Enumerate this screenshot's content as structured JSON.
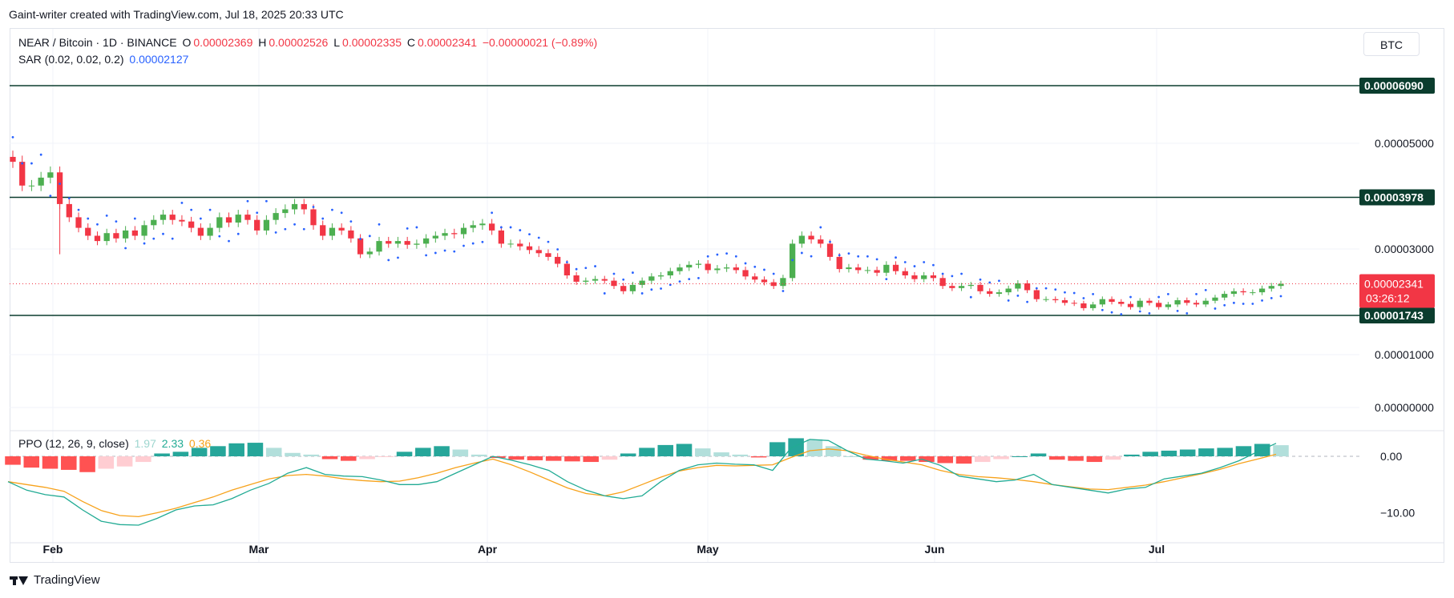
{
  "header_note": "Gaint-writer created with TradingView.com, Jul 18, 2025 20:33 UTC",
  "footer": {
    "brand": "TradingView",
    "logo_icon": "tradingview-logo-icon"
  },
  "currency_button": "BTC",
  "legend": {
    "symbol": "NEAR / Bitcoin · 1D · BINANCE",
    "o_label": "O",
    "o_value": "0.00002369",
    "h_label": "H",
    "h_value": "0.00002526",
    "l_label": "L",
    "l_value": "0.00002335",
    "c_label": "C",
    "c_value": "0.00002341",
    "change": "−0.00000021 (−0.89%)",
    "sar_label": "SAR (0.02, 0.02, 0.2)",
    "sar_value": "0.00002127",
    "ppo_label": "PPO (12, 26, 9, close)",
    "ppo_hist": "1.97",
    "ppo_line": "2.33",
    "ppo_signal": "0.36"
  },
  "colors": {
    "up": "#089981",
    "up_light": "#4caf50",
    "down": "#f23645",
    "sar": "#2962ff",
    "level_line": "#0b3d2e",
    "level_tag": "#0b3d2e",
    "ppo_line": "#22ab94",
    "ppo_signal": "#f7a21b",
    "hist_up_strong": "#26a69a",
    "hist_up_weak": "#b2dfdb",
    "hist_down_strong": "#ff5252",
    "hist_down_weak": "#ffcdd2"
  },
  "chart_data": [
    {
      "type": "candlestick",
      "title": "NEAR / Bitcoin · 1D · BINANCE",
      "x_tick_labels": [
        "Feb",
        "Mar",
        "Apr",
        "May",
        "Jun",
        "Jul"
      ],
      "y_tick_labels": [
        "0.00005000",
        "0.00003000",
        "0.00001000",
        "0.00000000"
      ],
      "y_ticks": [
        5e-05,
        3e-05,
        1e-05,
        0.0
      ],
      "ylim": [
        -4e-07,
        6.5e-06
      ],
      "horizontal_levels": [
        {
          "value": 6.09e-05,
          "label": "0.00006090"
        },
        {
          "value": 3.978e-05,
          "label": "0.00003978"
        },
        {
          "value": 1.743e-05,
          "label": "0.00001743"
        }
      ],
      "last_price": {
        "value": 2.341e-05,
        "label": "0.00002341",
        "countdown": "03:26:12"
      },
      "close_series_approx": [
        4.65e-05,
        4.2e-05,
        4.2e-05,
        4.35e-05,
        4.45e-05,
        3.85e-05,
        3.6e-05,
        3.4e-05,
        3.25e-05,
        3.15e-05,
        3.3e-05,
        3.2e-05,
        3.35e-05,
        3.25e-05,
        3.45e-05,
        3.55e-05,
        3.65e-05,
        3.55e-05,
        3.52e-05,
        3.4e-05,
        3.25e-05,
        3.4e-05,
        3.6e-05,
        3.5e-05,
        3.65e-05,
        3.55e-05,
        3.35e-05,
        3.55e-05,
        3.68e-05,
        3.75e-05,
        3.85e-05,
        3.75e-05,
        3.45e-05,
        3.25e-05,
        3.4e-05,
        3.35e-05,
        3.2e-05,
        2.9e-05,
        2.95e-05,
        3.15e-05,
        3.1e-05,
        3.15e-05,
        3.08e-05,
        3.1e-05,
        3.2e-05,
        3.25e-05,
        3.3e-05,
        3.28e-05,
        3.4e-05,
        3.45e-05,
        3.48e-05,
        3.35e-05,
        3.1e-05,
        3.1e-05,
        3.05e-05,
        2.98e-05,
        2.92e-05,
        2.85e-05,
        2.72e-05,
        2.5e-05,
        2.38e-05,
        2.4e-05,
        2.43e-05,
        2.4e-05,
        2.3e-05,
        2.2e-05,
        2.32e-05,
        2.4e-05,
        2.48e-05,
        2.5e-05,
        2.58e-05,
        2.65e-05,
        2.7e-05,
        2.72e-05,
        2.6e-05,
        2.63e-05,
        2.65e-05,
        2.6e-05,
        2.48e-05,
        2.42e-05,
        2.37e-05,
        2.3e-05,
        2.45e-05,
        3.1e-05,
        3.25e-05,
        3.18e-05,
        3.1e-05,
        2.85e-05,
        2.62e-05,
        2.65e-05,
        2.6e-05,
        2.6e-05,
        2.55e-05,
        2.7e-05,
        2.58e-05,
        2.5e-05,
        2.43e-05,
        2.5e-05,
        2.45e-05,
        2.3e-05,
        2.26e-05,
        2.3e-05,
        2.32e-05,
        2.2e-05,
        2.15e-05,
        2.18e-05,
        2.25e-05,
        2.35e-05,
        2.22e-05,
        2.05e-05,
        2.05e-05,
        2.03e-05,
        1.98e-05,
        1.97e-05,
        1.88e-05,
        1.95e-05,
        2.05e-05,
        2e-05,
        1.96e-05,
        1.9e-05,
        2.02e-05,
        1.98e-05,
        1.9e-05,
        1.95e-05,
        2.03e-05,
        1.98e-05,
        1.95e-05,
        2.02e-05,
        2.08e-05,
        2.15e-05,
        2.2e-05,
        2.18e-05,
        2.18e-05,
        2.25e-05,
        2.3e-05,
        2.34e-05
      ]
    },
    {
      "type": "line",
      "title": "PPO (12, 26, 9, close)",
      "y_tick_labels": [
        "0.00",
        "−10.00"
      ],
      "y_ticks": [
        0,
        -10
      ],
      "ylim": [
        -14.5,
        3.5
      ],
      "series": [
        {
          "name": "PPO",
          "values_approx": [
            -4.5,
            -6,
            -6.8,
            -7.2,
            -9.5,
            -11.5,
            -12.1,
            -12.2,
            -11,
            -9.5,
            -8.8,
            -8.6,
            -7.5,
            -6,
            -4.8,
            -3,
            -2,
            -3.2,
            -3.5,
            -3.6,
            -4.2,
            -5,
            -5,
            -4.5,
            -3,
            -1.5,
            0,
            -0.7,
            -1.5,
            -2.5,
            -4.5,
            -6,
            -7,
            -7.5,
            -7,
            -4.5,
            -2.5,
            -1.5,
            -1.2,
            -1.4,
            -1.5,
            -2.5,
            1.5,
            3,
            2.8,
            1,
            -0.5,
            -0.8,
            -1.2,
            -0.5,
            -1.6,
            -3.5,
            -4,
            -4.5,
            -4.2,
            -3.2,
            -5,
            -5.5,
            -6,
            -6.5,
            -5.8,
            -5.5,
            -4,
            -3.5,
            -3,
            -2,
            -0.8,
            0.8,
            2.3
          ]
        },
        {
          "name": "Signal",
          "values_approx": [
            -4.5,
            -5,
            -5.5,
            -6.2,
            -8,
            -9.6,
            -10.5,
            -10.7,
            -10,
            -9.2,
            -8.2,
            -7.2,
            -6,
            -5,
            -4,
            -3.4,
            -3.2,
            -3.5,
            -4,
            -4.3,
            -4.5,
            -4.4,
            -3.8,
            -3,
            -2,
            -1.2,
            -0.5,
            -1.5,
            -2.8,
            -4.2,
            -5.6,
            -6.6,
            -7,
            -6.3,
            -5,
            -3.7,
            -2.6,
            -2,
            -1.6,
            -1.7,
            -1.6,
            -1.5,
            -0.2,
            1,
            1.3,
            1,
            0.2,
            -0.5,
            -1,
            -1.5,
            -2.5,
            -3.2,
            -3.6,
            -3.8,
            -4.1,
            -4.5,
            -5,
            -5.4,
            -5.8,
            -5.9,
            -5.5,
            -5.1,
            -4.5,
            -3.8,
            -3.1,
            -2.3,
            -1.3,
            -0.5,
            0.36
          ]
        },
        {
          "name": "Histogram",
          "values_approx": [
            -1.5,
            -2,
            -2.2,
            -2.4,
            -2.8,
            -2.2,
            -1.8,
            -1,
            0.5,
            0.8,
            1.5,
            1.8,
            2.3,
            2.4,
            1.5,
            0.6,
            0.3,
            -0.5,
            -0.8,
            -0.5,
            -0.1,
            0.8,
            1.5,
            1.8,
            1.2,
            0.3,
            -0.3,
            -0.6,
            -0.7,
            -0.8,
            -0.9,
            -1,
            -0.6,
            0.5,
            1.5,
            2,
            2.2,
            1.4,
            0.7,
            0.3,
            -0.2,
            2.5,
            3.2,
            3,
            1.8,
            0,
            -0.6,
            -0.8,
            -0.8,
            -1,
            -1.2,
            -1.3,
            -1,
            -0.5,
            0,
            0.5,
            -0.6,
            -0.8,
            -1,
            -0.6,
            0.3,
            0.8,
            1,
            1.2,
            1.4,
            1.5,
            1.8,
            2.2,
            1.97
          ]
        }
      ]
    }
  ]
}
